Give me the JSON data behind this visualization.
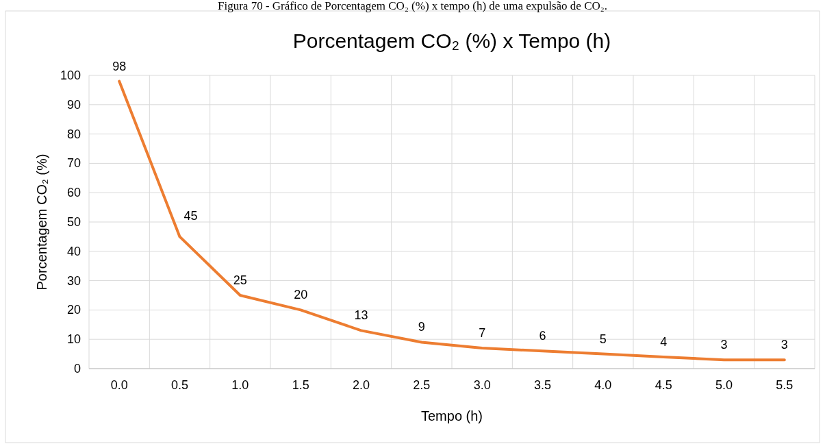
{
  "chart_data": {
    "type": "line",
    "title": "Porcentagem CO₂ (%) x Tempo (h)",
    "xlabel": "Tempo (h)",
    "ylabel": "Porcentagem CO₂ (%)",
    "annotations": [
      "Figura 70 - Gráfico de Porcentagem CO₂ (%) x tempo (h) de uma expulsão de CO₂."
    ],
    "categories": [
      "0.0",
      "0.5",
      "1.0",
      "1.5",
      "2.0",
      "2.5",
      "3.0",
      "3.5",
      "4.0",
      "4.5",
      "5.0",
      "5.5"
    ],
    "series": [
      {
        "color": "#ed7d31",
        "values": [
          98,
          45,
          25,
          20,
          13,
          9,
          7,
          6,
          5,
          4,
          3,
          3
        ]
      }
    ],
    "ylim": [
      0,
      100
    ],
    "yticks": [
      0,
      10,
      20,
      30,
      40,
      50,
      60,
      70,
      80,
      90,
      100
    ],
    "grid": true,
    "data_labels": true,
    "marker": "none",
    "line_style": "solid"
  }
}
